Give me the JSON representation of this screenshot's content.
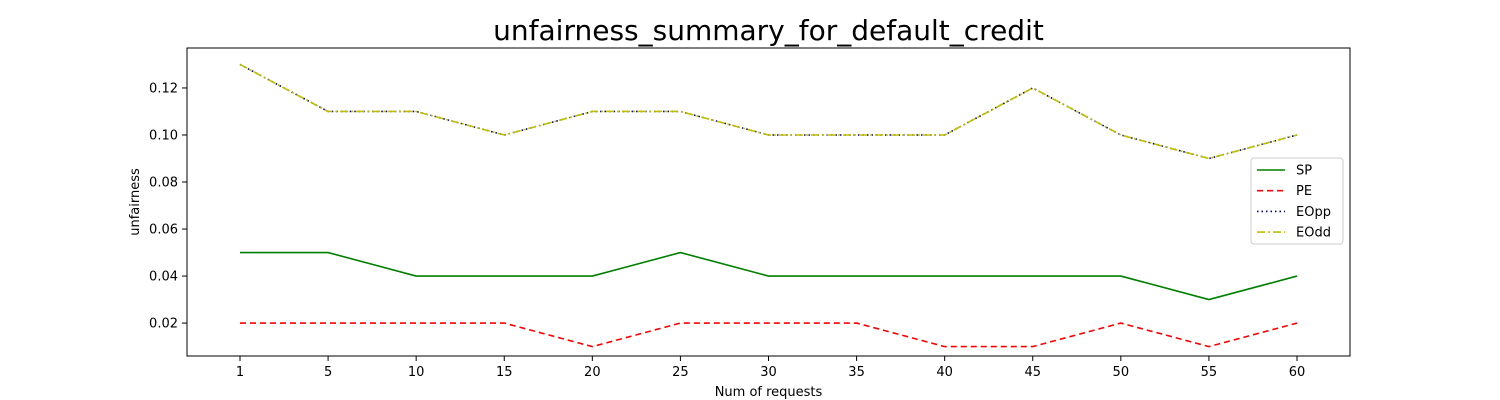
{
  "chart_data": {
    "type": "line",
    "title": "unfairness_summary_for_default_credit",
    "xlabel": "Num of requests",
    "ylabel": "unfairness",
    "categories": [
      "1",
      "5",
      "10",
      "15",
      "20",
      "25",
      "30",
      "35",
      "40",
      "45",
      "50",
      "55",
      "60"
    ],
    "ylim": [
      0.006,
      0.137
    ],
    "yticks": [
      "0.02",
      "0.04",
      "0.06",
      "0.08",
      "0.10",
      "0.12"
    ],
    "ytick_values": [
      0.02,
      0.04,
      0.06,
      0.08,
      0.1,
      0.12
    ],
    "grid": false,
    "legend_position": "center-right",
    "series": [
      {
        "name": "SP",
        "color": "#008000",
        "dash": "solid",
        "values": [
          0.05,
          0.05,
          0.04,
          0.04,
          0.04,
          0.05,
          0.04,
          0.04,
          0.04,
          0.04,
          0.04,
          0.03,
          0.04
        ]
      },
      {
        "name": "PE",
        "color": "#ff0000",
        "dash": "dashed",
        "values": [
          0.02,
          0.02,
          0.02,
          0.02,
          0.01,
          0.02,
          0.02,
          0.02,
          0.01,
          0.01,
          0.02,
          0.01,
          0.02
        ]
      },
      {
        "name": "EOpp",
        "color": "#00008b",
        "dash": "dotted",
        "values": [
          0.13,
          0.11,
          0.11,
          0.1,
          0.11,
          0.11,
          0.1,
          0.1,
          0.1,
          0.12,
          0.1,
          0.09,
          0.1
        ]
      },
      {
        "name": " EOdd",
        "color": "#bfbf00",
        "dash": "dashdot",
        "values": [
          0.13,
          0.11,
          0.11,
          0.1,
          0.11,
          0.11,
          0.1,
          0.1,
          0.1,
          0.12,
          0.1,
          0.09,
          0.1
        ]
      }
    ]
  }
}
